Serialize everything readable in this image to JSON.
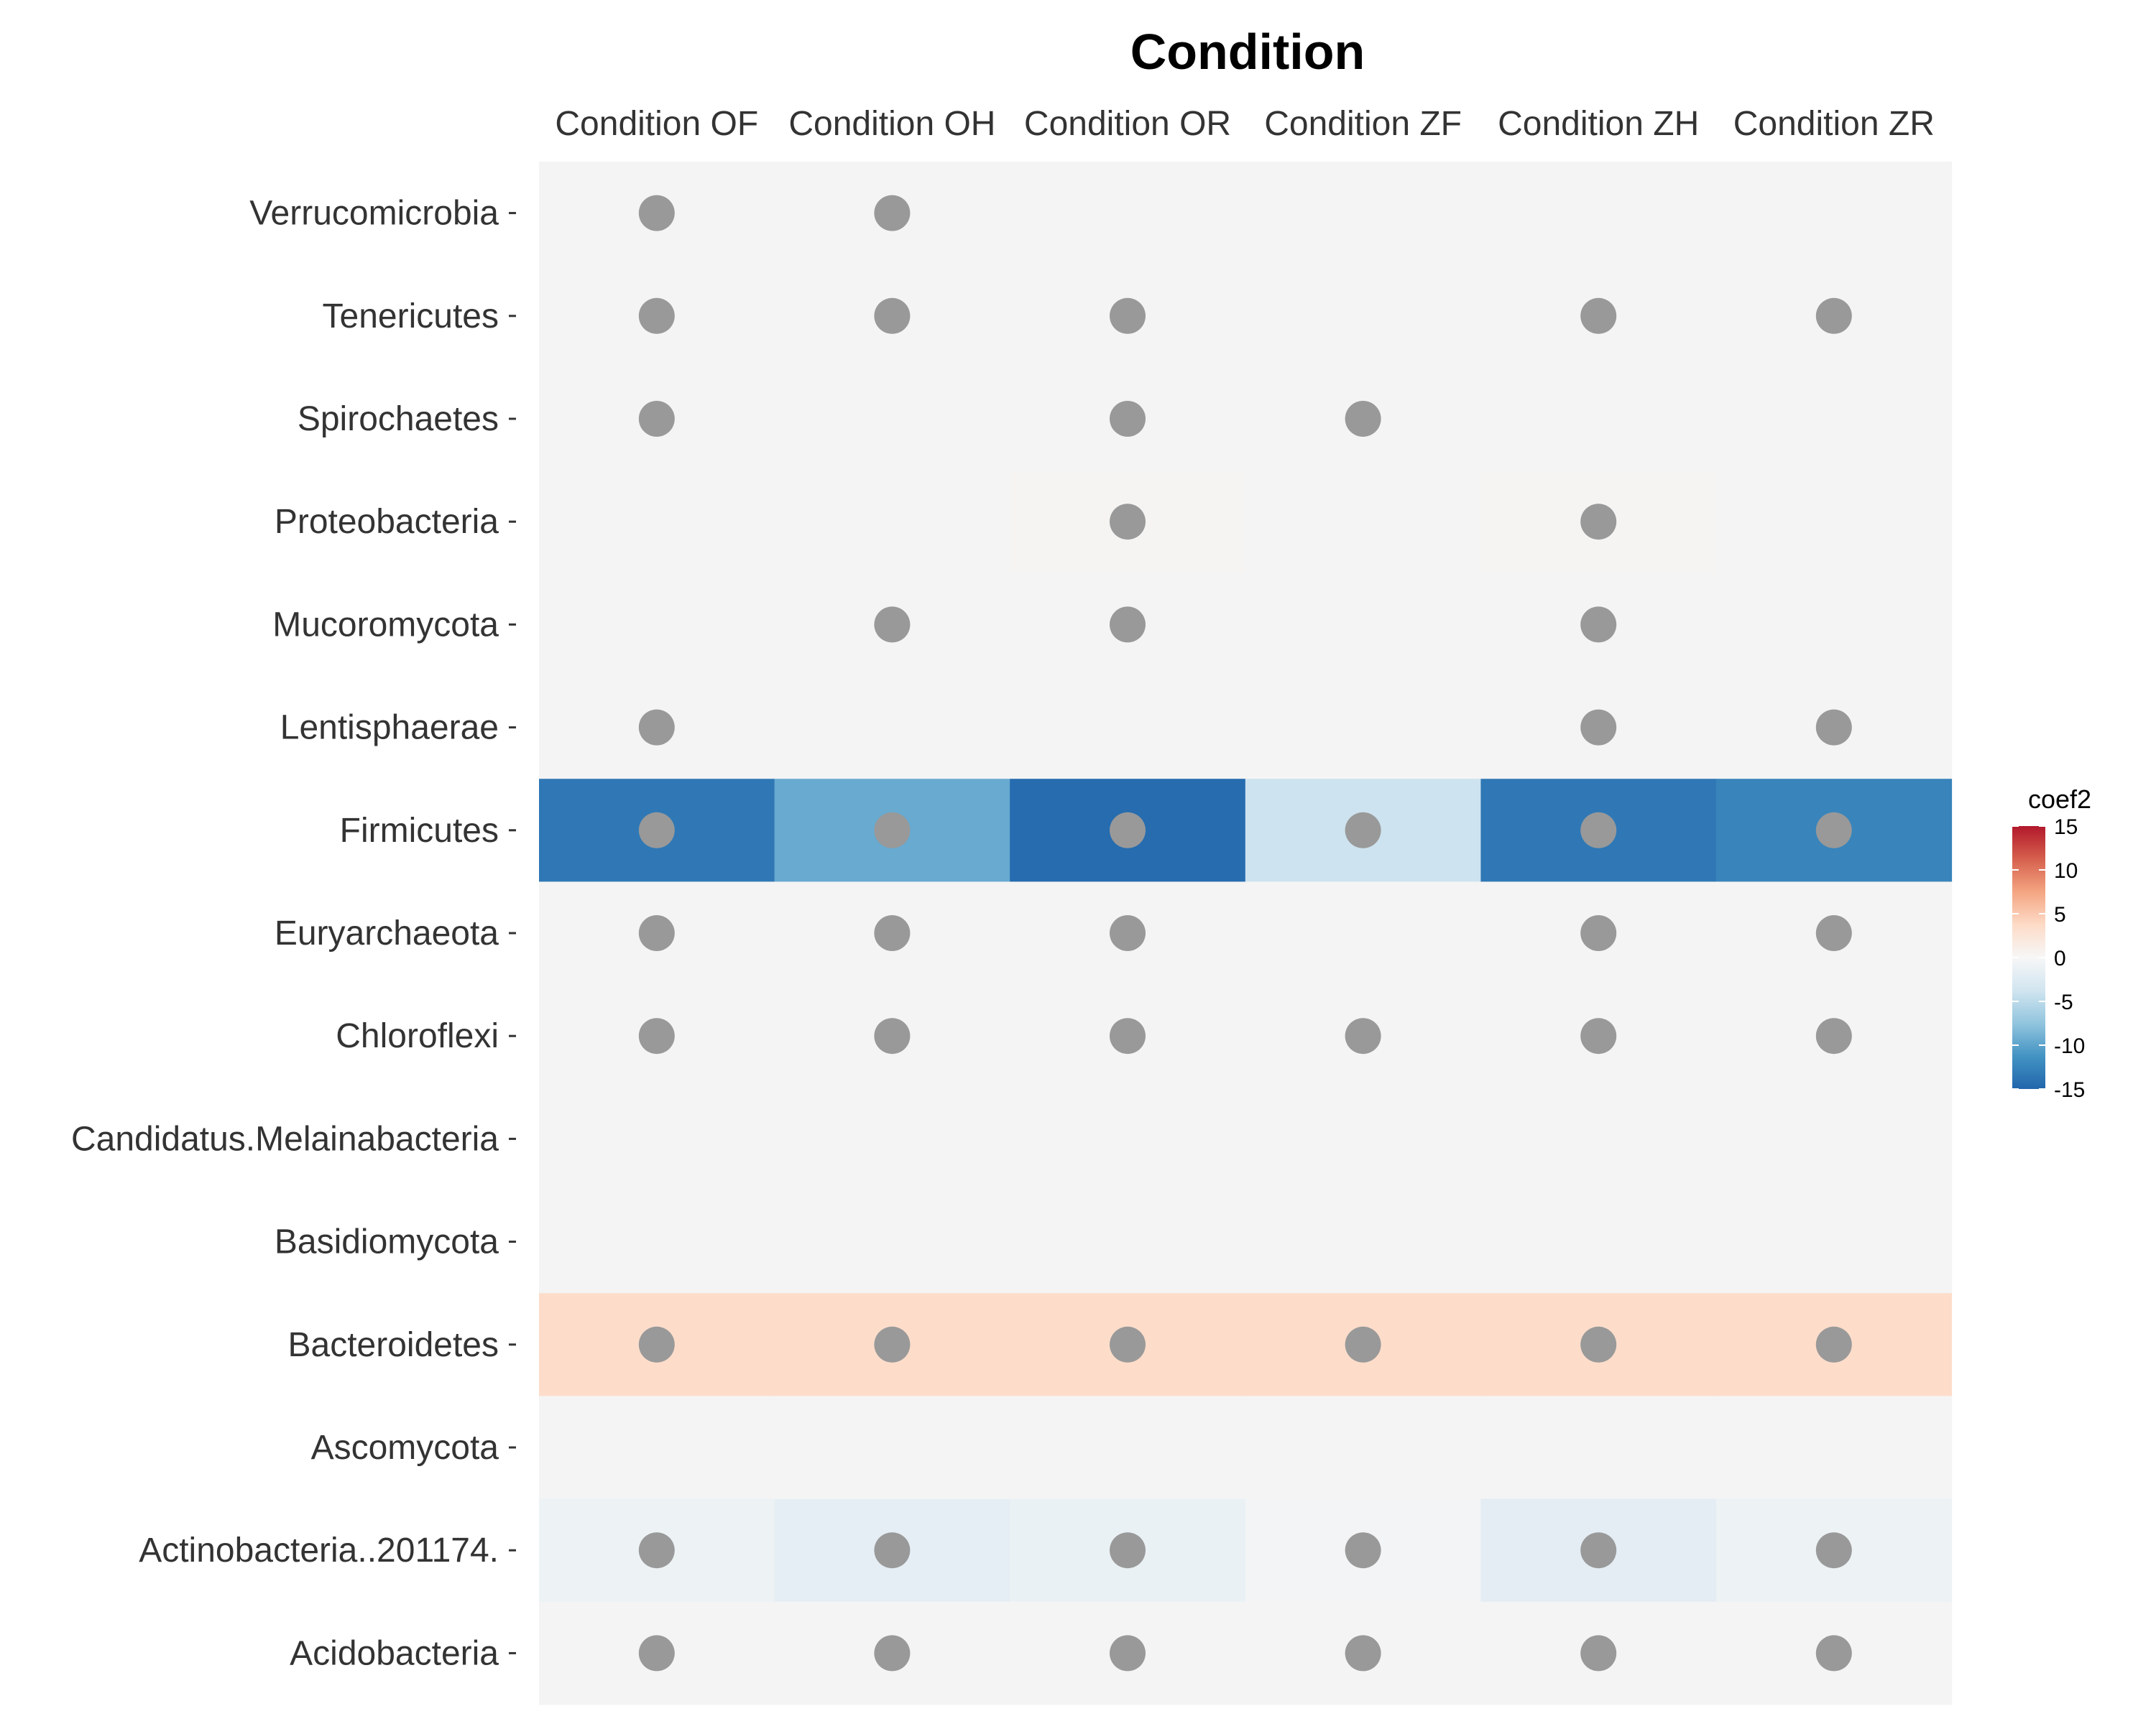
{
  "chart_data": {
    "type": "heatmap",
    "title": "Condition",
    "columns": [
      "Condition OF",
      "Condition OH",
      "Condition OR",
      "Condition ZF",
      "Condition ZH",
      "Condition ZR"
    ],
    "rows": [
      "Verrucomicrobia",
      "Tenericutes",
      "Spirochaetes",
      "Proteobacteria",
      "Mucoromycota",
      "Lentisphaerae",
      "Firmicutes",
      "Euryarchaeota",
      "Chloroflexi",
      "Candidatus.Melainabacteria",
      "Basidiomycota",
      "Bacteroidetes",
      "Ascomycota",
      "Actinobacteria..201174.",
      "Acidobacteria"
    ],
    "values": [
      [
        -0.3,
        -0.3,
        0,
        0,
        0,
        0
      ],
      [
        0,
        0,
        0,
        0,
        0,
        0
      ],
      [
        0,
        0,
        0,
        0,
        0,
        0
      ],
      [
        0.2,
        0.2,
        0.4,
        0,
        0.4,
        0.2
      ],
      [
        0,
        0,
        0,
        0,
        0,
        0
      ],
      [
        0,
        0,
        0,
        0,
        0,
        0
      ],
      [
        -13.5,
        -9.5,
        -14.5,
        -4,
        -13.5,
        -12.5
      ],
      [
        0,
        0,
        0,
        0,
        0,
        0
      ],
      [
        0,
        0,
        0,
        0,
        0,
        0
      ],
      [
        0,
        0,
        0,
        0,
        0,
        0
      ],
      [
        0,
        0,
        0,
        0,
        0,
        0
      ],
      [
        3.5,
        3.5,
        3.5,
        3.5,
        3.5,
        3.5
      ],
      [
        0,
        0,
        0,
        0,
        0,
        0
      ],
      [
        -1.2,
        -1.8,
        -1.4,
        -0.6,
        -2,
        -1.2
      ],
      [
        0,
        0,
        0,
        0,
        0,
        0
      ]
    ],
    "significant": [
      [
        1,
        1,
        0,
        0,
        0,
        0
      ],
      [
        1,
        1,
        1,
        0,
        1,
        1
      ],
      [
        1,
        0,
        1,
        1,
        0,
        0
      ],
      [
        0,
        0,
        1,
        0,
        1,
        0
      ],
      [
        0,
        1,
        1,
        0,
        1,
        0
      ],
      [
        1,
        0,
        0,
        0,
        1,
        1
      ],
      [
        1,
        1,
        1,
        1,
        1,
        1
      ],
      [
        1,
        1,
        1,
        0,
        1,
        1
      ],
      [
        1,
        1,
        1,
        1,
        1,
        1
      ],
      [
        0,
        0,
        0,
        0,
        0,
        0
      ],
      [
        0,
        0,
        0,
        0,
        0,
        0
      ],
      [
        1,
        1,
        1,
        1,
        1,
        1
      ],
      [
        0,
        0,
        0,
        0,
        0,
        0
      ],
      [
        1,
        1,
        1,
        1,
        1,
        1
      ],
      [
        1,
        1,
        1,
        1,
        1,
        1
      ]
    ],
    "colorscale": {
      "title": "coef2",
      "range": [
        -15,
        15
      ],
      "ticks": [
        15,
        10,
        5,
        0,
        -5,
        -10,
        -15
      ],
      "palette": "RdBu",
      "colors": [
        "#2166ac",
        "#4393c3",
        "#92c5de",
        "#d1e5f0",
        "#f7f7f7",
        "#fddbc7",
        "#f4a582",
        "#d6604d",
        "#b2182b"
      ]
    },
    "neutral_color": "#f4f4f4",
    "dot_color": "#999999",
    "legend_position": "right"
  }
}
